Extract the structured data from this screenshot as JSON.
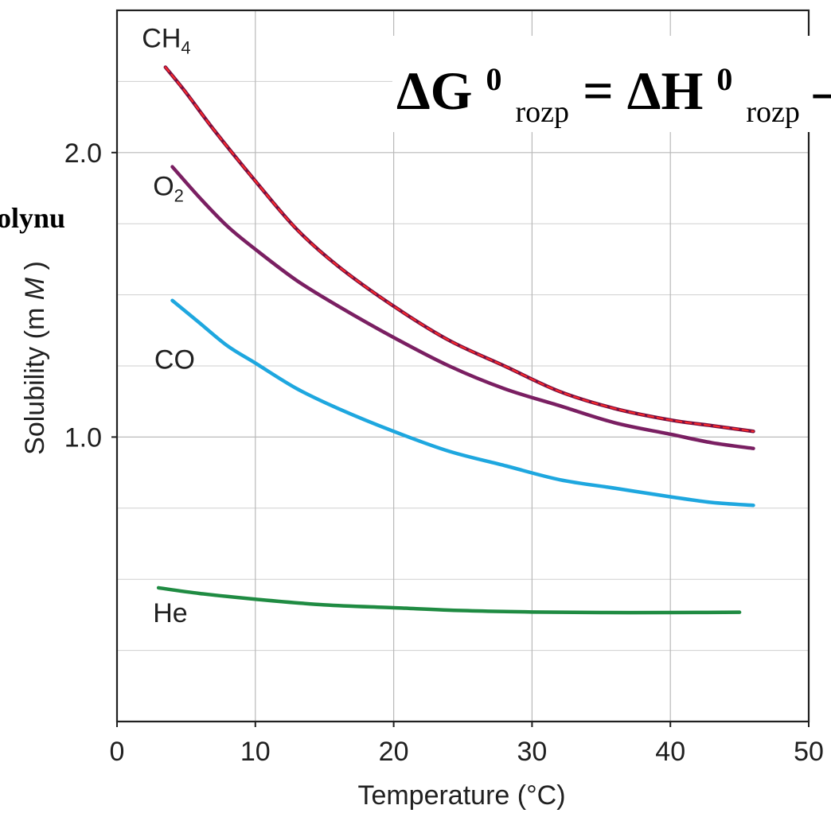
{
  "chart_data": {
    "type": "line",
    "xlabel": "Temperature (°C)",
    "ylabel": "Solubility (mM)",
    "ylabel_parts": {
      "prefix": "Solubility (m",
      "unit_italic": "M",
      "suffix": ")"
    },
    "xlim": [
      0,
      50
    ],
    "ylim": [
      0,
      2.5
    ],
    "xticks": [
      0,
      10,
      20,
      30,
      40,
      50
    ],
    "xtick_labels": [
      "0",
      "10",
      "20",
      "30",
      "40",
      "50"
    ],
    "yticks": [
      1.0,
      2.0
    ],
    "ytick_labels": [
      "1.0",
      "2.0"
    ],
    "grid_x": [
      10,
      20,
      30,
      40
    ],
    "grid_y_major": [
      1.0,
      2.0
    ],
    "grid_y_minor": [
      0.25,
      0.5,
      0.75,
      1.25,
      1.5,
      1.75,
      2.25
    ],
    "series": [
      {
        "name": "CH4",
        "label_main": "CH",
        "label_sub": "4",
        "color": "#7a0f3f",
        "overlay_color": "#ff2a2a",
        "label_data_x": 1.8,
        "label_data_y": 2.37,
        "x": [
          3.5,
          5,
          7,
          10,
          13,
          16,
          20,
          24,
          28,
          32,
          36,
          40,
          43,
          46
        ],
        "values": [
          2.3,
          2.21,
          2.08,
          1.9,
          1.73,
          1.6,
          1.46,
          1.34,
          1.25,
          1.16,
          1.1,
          1.06,
          1.04,
          1.02
        ]
      },
      {
        "name": "O2",
        "label_main": "O",
        "label_sub": "2",
        "color": "#7a1f62",
        "label_data_x": 2.6,
        "label_data_y": 1.85,
        "x": [
          4,
          6,
          8,
          10,
          13,
          16,
          20,
          24,
          28,
          32,
          36,
          40,
          43,
          46
        ],
        "values": [
          1.95,
          1.84,
          1.74,
          1.66,
          1.55,
          1.46,
          1.35,
          1.25,
          1.17,
          1.11,
          1.05,
          1.01,
          0.98,
          0.96
        ]
      },
      {
        "name": "CO",
        "label_main": "CO",
        "label_sub": "",
        "color": "#1ea7df",
        "label_data_x": 2.7,
        "label_data_y": 1.24,
        "x": [
          4,
          6,
          8,
          10,
          13,
          16,
          20,
          24,
          28,
          32,
          36,
          40,
          43,
          46
        ],
        "values": [
          1.48,
          1.4,
          1.32,
          1.26,
          1.17,
          1.1,
          1.02,
          0.95,
          0.9,
          0.85,
          0.82,
          0.79,
          0.77,
          0.76
        ]
      },
      {
        "name": "He",
        "label_main": "He",
        "label_sub": "",
        "color": "#1f8b42",
        "label_data_x": 2.6,
        "label_data_y": 0.35,
        "x": [
          3,
          6,
          10,
          15,
          20,
          25,
          30,
          35,
          40,
          45
        ],
        "values": [
          0.47,
          0.45,
          0.43,
          0.41,
          0.4,
          0.39,
          0.385,
          0.383,
          0.383,
          0.384
        ]
      }
    ]
  },
  "overlay": {
    "equation": {
      "part_1": "ΔG",
      "part_1_sup": "0",
      "part_1_sub": "rozp",
      "part_2": " = ΔH",
      "part_2_sup": "0",
      "part_2_sub": "rozp",
      "part_3": " –"
    },
    "side_fragment": "olynu"
  },
  "colors": {
    "axis": "#202020",
    "grid": "#b9b9b9",
    "background": "#ffffff"
  }
}
